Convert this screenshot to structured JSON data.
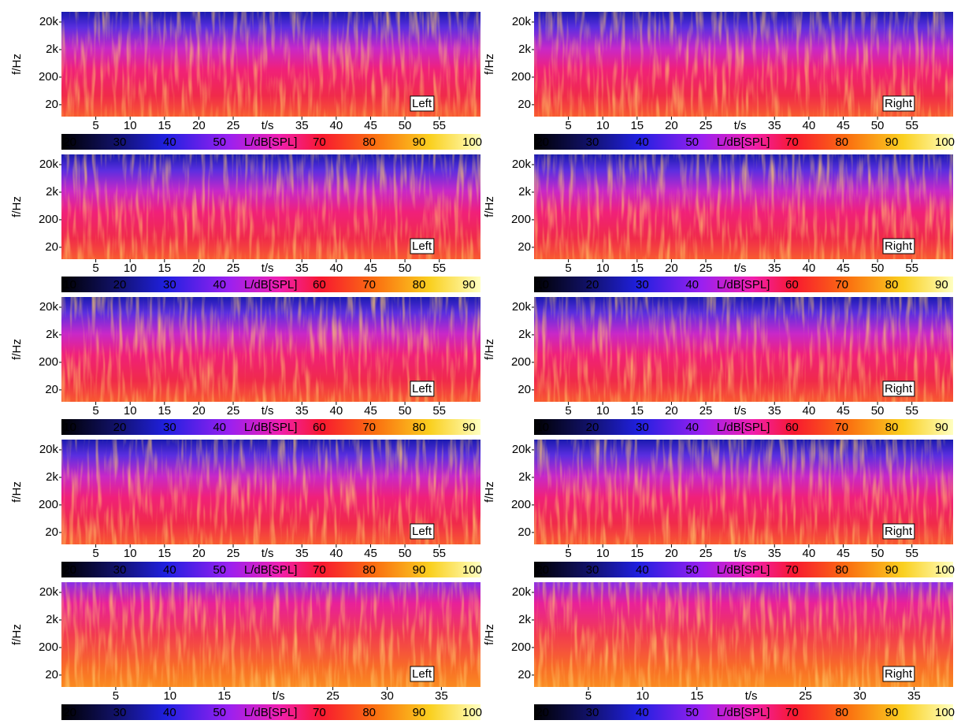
{
  "chart_data": [
    {
      "type": "spectrogram",
      "channel": "Left",
      "xlabel": "t/s",
      "ylabel": "f/Hz",
      "log_y": true,
      "xlim": [
        0,
        61
      ],
      "xticks": [
        5,
        10,
        15,
        20,
        25,
        35,
        40,
        45,
        50,
        55
      ],
      "ylim": [
        7.4,
        47000
      ],
      "yticks": [
        {
          "value": 20,
          "label": "20"
        },
        {
          "value": 200,
          "label": "200"
        },
        {
          "value": 2000,
          "label": "2k"
        },
        {
          "value": 20000,
          "label": "20k"
        }
      ],
      "colorbar": {
        "label": "L/dB[SPL]",
        "clim": [
          19,
          103
        ],
        "ticks": [
          20,
          30,
          40,
          50,
          70,
          80,
          90,
          100
        ]
      }
    },
    {
      "type": "spectrogram",
      "channel": "Right",
      "xlabel": "t/s",
      "ylabel": "f/Hz",
      "log_y": true,
      "xlim": [
        0,
        61
      ],
      "xticks": [
        5,
        10,
        15,
        20,
        25,
        35,
        40,
        45,
        50,
        55
      ],
      "ylim": [
        7.4,
        47000
      ],
      "yticks": [
        {
          "value": 20,
          "label": "20"
        },
        {
          "value": 200,
          "label": "200"
        },
        {
          "value": 2000,
          "label": "2k"
        },
        {
          "value": 20000,
          "label": "20k"
        }
      ],
      "colorbar": {
        "label": "L/dB[SPL]",
        "clim": [
          19,
          103
        ],
        "ticks": [
          20,
          30,
          40,
          50,
          70,
          80,
          90,
          100
        ]
      }
    },
    {
      "type": "spectrogram",
      "channel": "Left",
      "xlabel": "t/s",
      "ylabel": "f/Hz",
      "log_y": true,
      "xlim": [
        0,
        61
      ],
      "xticks": [
        5,
        10,
        15,
        20,
        25,
        35,
        40,
        45,
        50,
        55
      ],
      "ylim": [
        7.4,
        47000
      ],
      "yticks": [
        {
          "value": 20,
          "label": "20"
        },
        {
          "value": 200,
          "label": "200"
        },
        {
          "value": 2000,
          "label": "2k"
        },
        {
          "value": 20000,
          "label": "20k"
        }
      ],
      "colorbar": {
        "label": "L/dB[SPL]",
        "clim": [
          9,
          93
        ],
        "ticks": [
          10,
          20,
          30,
          40,
          60,
          70,
          80,
          90
        ]
      }
    },
    {
      "type": "spectrogram",
      "channel": "Right",
      "xlabel": "t/s",
      "ylabel": "f/Hz",
      "log_y": true,
      "xlim": [
        0,
        61
      ],
      "xticks": [
        5,
        10,
        15,
        20,
        25,
        35,
        40,
        45,
        50,
        55
      ],
      "ylim": [
        7.4,
        47000
      ],
      "yticks": [
        {
          "value": 20,
          "label": "20"
        },
        {
          "value": 200,
          "label": "200"
        },
        {
          "value": 2000,
          "label": "2k"
        },
        {
          "value": 20000,
          "label": "20k"
        }
      ],
      "colorbar": {
        "label": "L/dB[SPL]",
        "clim": [
          9,
          93
        ],
        "ticks": [
          10,
          20,
          30,
          40,
          60,
          70,
          80,
          90
        ]
      }
    },
    {
      "type": "spectrogram",
      "channel": "Left",
      "xlabel": "t/s",
      "ylabel": "f/Hz",
      "log_y": true,
      "xlim": [
        0,
        61
      ],
      "xticks": [
        5,
        10,
        15,
        20,
        25,
        35,
        40,
        45,
        50,
        55
      ],
      "ylim": [
        7.4,
        47000
      ],
      "yticks": [
        {
          "value": 20,
          "label": "20"
        },
        {
          "value": 200,
          "label": "200"
        },
        {
          "value": 2000,
          "label": "2k"
        },
        {
          "value": 20000,
          "label": "20k"
        }
      ],
      "colorbar": {
        "label": "L/dB[SPL]",
        "clim": [
          9,
          93
        ],
        "ticks": [
          10,
          20,
          30,
          40,
          60,
          70,
          80,
          90
        ]
      }
    },
    {
      "type": "spectrogram",
      "channel": "Right",
      "xlabel": "t/s",
      "ylabel": "f/Hz",
      "log_y": true,
      "xlim": [
        0,
        61
      ],
      "xticks": [
        5,
        10,
        15,
        20,
        25,
        35,
        40,
        45,
        50,
        55
      ],
      "ylim": [
        7.4,
        47000
      ],
      "yticks": [
        {
          "value": 20,
          "label": "20"
        },
        {
          "value": 200,
          "label": "200"
        },
        {
          "value": 2000,
          "label": "2k"
        },
        {
          "value": 20000,
          "label": "20k"
        }
      ],
      "colorbar": {
        "label": "L/dB[SPL]",
        "clim": [
          9,
          93
        ],
        "ticks": [
          10,
          20,
          30,
          40,
          60,
          70,
          80,
          90
        ]
      }
    },
    {
      "type": "spectrogram",
      "channel": "Left",
      "xlabel": "t/s",
      "ylabel": "f/Hz",
      "log_y": true,
      "xlim": [
        0,
        61
      ],
      "xticks": [
        5,
        10,
        15,
        20,
        25,
        35,
        40,
        45,
        50,
        55
      ],
      "ylim": [
        7.4,
        47000
      ],
      "yticks": [
        {
          "value": 20,
          "label": "20"
        },
        {
          "value": 200,
          "label": "200"
        },
        {
          "value": 2000,
          "label": "2k"
        },
        {
          "value": 20000,
          "label": "20k"
        }
      ],
      "colorbar": {
        "label": "L/dB[SPL]",
        "clim": [
          19,
          103
        ],
        "ticks": [
          20,
          30,
          40,
          50,
          70,
          80,
          90,
          100
        ]
      }
    },
    {
      "type": "spectrogram",
      "channel": "Right",
      "xlabel": "t/s",
      "ylabel": "f/Hz",
      "log_y": true,
      "xlim": [
        0,
        61
      ],
      "xticks": [
        5,
        10,
        15,
        20,
        25,
        35,
        40,
        45,
        50,
        55
      ],
      "ylim": [
        7.4,
        47000
      ],
      "yticks": [
        {
          "value": 20,
          "label": "20"
        },
        {
          "value": 200,
          "label": "200"
        },
        {
          "value": 2000,
          "label": "2k"
        },
        {
          "value": 20000,
          "label": "20k"
        }
      ],
      "colorbar": {
        "label": "L/dB[SPL]",
        "clim": [
          19,
          103
        ],
        "ticks": [
          20,
          30,
          40,
          50,
          70,
          80,
          90,
          100
        ]
      }
    },
    {
      "type": "spectrogram",
      "channel": "Left",
      "xlabel": "t/s",
      "ylabel": "f/Hz",
      "log_y": true,
      "xlim": [
        0,
        38.6
      ],
      "xticks": [
        5,
        10,
        15,
        25,
        30,
        35
      ],
      "ylim": [
        7.4,
        47000
      ],
      "yticks": [
        {
          "value": 20,
          "label": "20"
        },
        {
          "value": 200,
          "label": "200"
        },
        {
          "value": 2000,
          "label": "2k"
        },
        {
          "value": 20000,
          "label": "20k"
        }
      ],
      "colorbar": {
        "label": "L/dB[SPL]",
        "clim": [
          19,
          103
        ],
        "ticks": [
          20,
          30,
          40,
          50,
          70,
          80,
          90,
          100
        ]
      }
    },
    {
      "type": "spectrogram",
      "channel": "Right",
      "xlabel": "t/s",
      "ylabel": "f/Hz",
      "log_y": true,
      "xlim": [
        0,
        38.6
      ],
      "xticks": [
        5,
        10,
        15,
        25,
        30,
        35
      ],
      "ylim": [
        7.4,
        47000
      ],
      "yticks": [
        {
          "value": 20,
          "label": "20"
        },
        {
          "value": 200,
          "label": "200"
        },
        {
          "value": 2000,
          "label": "2k"
        },
        {
          "value": 20000,
          "label": "20k"
        }
      ],
      "colorbar": {
        "label": "L/dB[SPL]",
        "clim": [
          19,
          103
        ],
        "ticks": [
          20,
          30,
          40,
          50,
          70,
          80,
          90,
          100
        ]
      }
    }
  ]
}
